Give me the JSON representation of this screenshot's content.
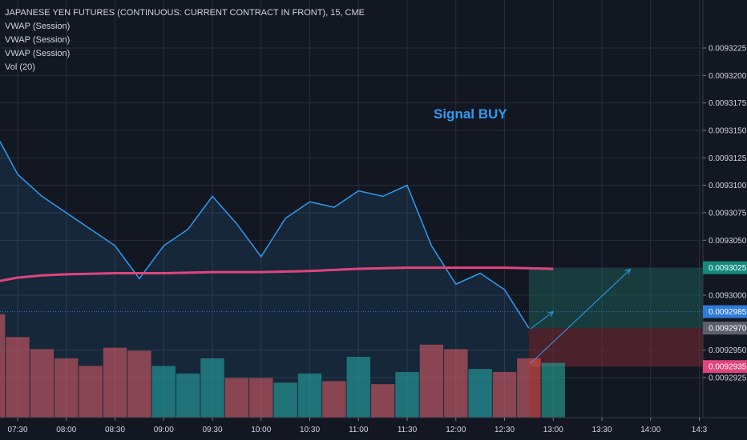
{
  "header": {
    "title": "JAPANESE YEN FUTURES (CONTINUOUS: CURRENT CONTRACT IN FRONT), 15, CME",
    "indicators": [
      "VWAP (Session)",
      "VWAP (Session)",
      "VWAP (Session)",
      "Vol (20)"
    ]
  },
  "signal": {
    "label": "Signal BUY",
    "color": "#2e9cf2"
  },
  "colors": {
    "background": "#131722",
    "grid": "#2a2e39",
    "price_line": "#2e9cf2",
    "vwap_line": "#e0457b",
    "vol_up": "#26a69a",
    "vol_down": "#ef5350",
    "target_zone": "#1e6b60",
    "stop_zone": "#7a2a33",
    "tag_target": "#138a7e",
    "tag_current": "#2e7bd8",
    "tag_entry": "#5d606b",
    "tag_stop": "#e0457b"
  },
  "chart_data": {
    "type": "line",
    "y_ticks": [
      "0.0093225",
      "0.0093200",
      "0.0093175",
      "0.0093150",
      "0.0093125",
      "0.0093100",
      "0.0093075",
      "0.0093050",
      "0.0093000",
      "0.0092950",
      "0.0092925"
    ],
    "x_ticks": [
      "07:30",
      "08:00",
      "08:30",
      "09:00",
      "09:30",
      "10:00",
      "10:30",
      "11:00",
      "11:30",
      "12:00",
      "12:30",
      "13:00",
      "13:30",
      "14:00",
      "14:3"
    ],
    "ylim": [
      0.00929155,
      0.00932505
    ],
    "price_series": {
      "times": [
        7.25,
        7.5,
        7.75,
        8.0,
        8.25,
        8.5,
        8.75,
        9.0,
        9.25,
        9.5,
        9.75,
        10.0,
        10.25,
        10.5,
        10.75,
        11.0,
        11.25,
        11.5,
        11.75,
        12.0,
        12.25,
        12.5,
        12.75
      ],
      "values": [
        0.009314,
        0.009311,
        0.009309,
        0.0093075,
        0.009306,
        0.0093045,
        0.0093015,
        0.0093045,
        0.009306,
        0.009309,
        0.0093065,
        0.0093035,
        0.009307,
        0.0093085,
        0.009308,
        0.0093095,
        0.009309,
        0.00931,
        0.0093045,
        0.009301,
        0.009302,
        0.0093005,
        0.009297
      ]
    },
    "vwap_series": {
      "times": [
        7.25,
        7.5,
        7.75,
        8.0,
        8.5,
        9.0,
        9.5,
        10.0,
        10.5,
        11.0,
        11.5,
        12.0,
        12.5,
        13.0
      ],
      "values": [
        0.0093013,
        0.0093016,
        0.0093018,
        0.0093019,
        0.009302,
        0.009302,
        0.0093021,
        0.0093021,
        0.0093022,
        0.0093024,
        0.0093025,
        0.0093025,
        0.0093025,
        0.0093024
      ]
    },
    "volume": {
      "relative": [
        0.68,
        0.53,
        0.45,
        0.39,
        0.34,
        0.46,
        0.44,
        0.34,
        0.29,
        0.39,
        0.26,
        0.26,
        0.23,
        0.29,
        0.24,
        0.4,
        0.22,
        0.3,
        0.48,
        0.45,
        0.32,
        0.3,
        0.39,
        0.36
      ],
      "direction": [
        "down",
        "down",
        "down",
        "down",
        "down",
        "down",
        "down",
        "up",
        "up",
        "up",
        "down",
        "down",
        "up",
        "up",
        "down",
        "up",
        "down",
        "up",
        "down",
        "down",
        "up",
        "down",
        "down",
        "up"
      ]
    },
    "position": {
      "entry": 0.009297,
      "target": 0.0093025,
      "stop": 0.0092935,
      "current": 0.0092985,
      "start_time": 12.75,
      "end_time": 13.75
    },
    "price_tags": [
      {
        "label": "0.0093025",
        "value": 0.0093025,
        "kind": "target"
      },
      {
        "label": "0.0092985",
        "value": 0.0092985,
        "kind": "current"
      },
      {
        "label": "0.0092970",
        "value": 0.009297,
        "kind": "entry"
      },
      {
        "label": "0.0092935",
        "value": 0.0092935,
        "kind": "stop"
      }
    ]
  }
}
